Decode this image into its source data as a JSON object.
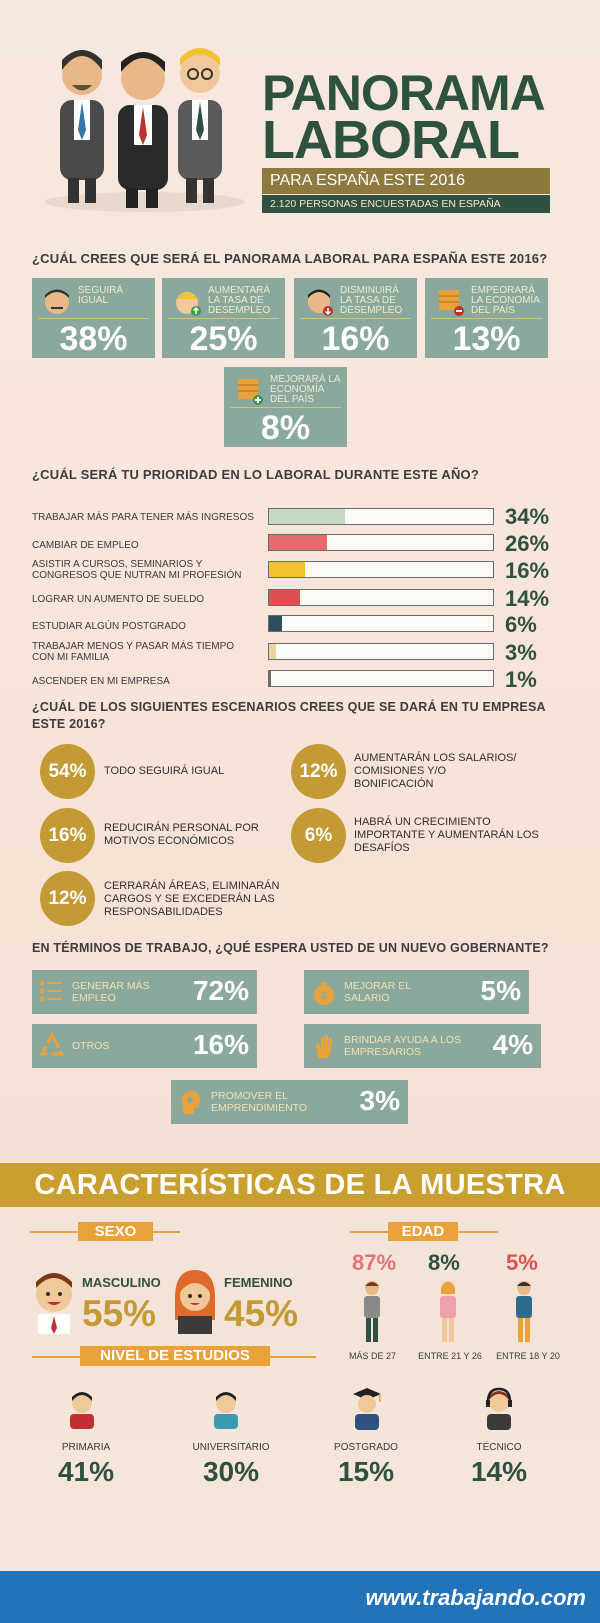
{
  "header": {
    "title_line1": "PANORAMA",
    "title_line2": "LABORAL",
    "subtitle": "PARA ESPAÑA ESTE 2016",
    "sample": "2.120  PERSONAS ENCUESTADAS EN ESPAÑA"
  },
  "q1": {
    "question": "¿CUÁL CREES QUE SERÁ EL PANORAMA LABORAL PARA ESPAÑA ESTE 2016?",
    "options": [
      {
        "label": "SEGUIRÁ IGUAL",
        "pct": "38%",
        "icon": "neutral-face-icon"
      },
      {
        "label": "AUMENTARÁ LA TASA DE DESEMPLEO",
        "pct": "25%",
        "icon": "worker-up-icon"
      },
      {
        "label": "DISMINUIRÁ LA TASA DE DESEMPLEO",
        "pct": "16%",
        "icon": "worker-down-icon"
      },
      {
        "label": "EMPEORARÁ LA ECONOMÍA DEL PAÍS",
        "pct": "13%",
        "icon": "coins-minus-icon"
      },
      {
        "label": "MEJORARÁ LA ECONOMÍA DEL PAÍS",
        "pct": "8%",
        "icon": "coins-plus-icon"
      }
    ]
  },
  "q2": {
    "question": "¿CUÁL SERÁ TU PRIORIDAD EN LO LABORAL DURANTE ESTE AÑO?",
    "items": [
      {
        "label": "TRABAJAR MÁS PARA TENER MÁS INGRESOS",
        "pct": "34%",
        "value": 34,
        "color": "#c5d8c6"
      },
      {
        "label": "CAMBIAR DE EMPLEO",
        "pct": "26%",
        "value": 26,
        "color": "#e76b6b"
      },
      {
        "label": "ASISTIR A CURSOS, SEMINARIOS Y CONGRESOS QUE NUTRAN MI PROFESIÓN",
        "pct": "16%",
        "value": 16,
        "color": "#f1c22e"
      },
      {
        "label": "LOGRAR UN AUMENTO DE SUELDO",
        "pct": "14%",
        "value": 14,
        "color": "#de5050"
      },
      {
        "label": "ESTUDIAR ALGÚN POSTGRADO",
        "pct": "6%",
        "value": 6,
        "color": "#2e4e5e"
      },
      {
        "label": "TRABAJAR MENOS Y PASAR MÁS TIEMPO CON MI FAMILIA",
        "pct": "3%",
        "value": 3,
        "color": "#e8d69a"
      },
      {
        "label": "ASCENDER EN MI EMPRESA",
        "pct": "1%",
        "value": 1,
        "color": "#6b6b6b"
      }
    ]
  },
  "q3": {
    "question_line1": "¿CUÁL DE LOS SIGUIENTES ESCENARIOS CREES QUE SE DARÁ EN TU EMPRESA",
    "question_line2": "ESTE 2016?",
    "items": [
      {
        "pct": "54%",
        "text": "TODO SEGUIRÁ IGUAL"
      },
      {
        "pct": "16%",
        "text": "REDUCIRÁN PERSONAL POR MOTIVOS ECONÓMICOS"
      },
      {
        "pct": "12%",
        "text": "CERRARÁN ÁREAS, ELIMINARÁN CARGOS Y SE EXCEDERÁN LAS RESPONSABILIDADES"
      },
      {
        "pct": "12%",
        "text": "AUMENTARÁN LOS SALARIOS/ COMISIONES Y/O BONIFICACIÓN"
      },
      {
        "pct": "6%",
        "text": "HABRÁ UN CRECIMIENTO IMPORTANTE Y AUMENTARÁN LOS DESAFÍOS"
      }
    ]
  },
  "q4": {
    "question": "EN TÉRMINOS DE TRABAJO, ¿QUÉ ESPERA USTED DE UN NUEVO GOBERNANTE?",
    "items": [
      {
        "label": "GENERAR MÁS EMPLEO",
        "pct": "72%",
        "icon": "list-icon"
      },
      {
        "label": "OTROS",
        "pct": "16%",
        "icon": "recycle-icon"
      },
      {
        "label": "MEJORAR EL SALARIO",
        "pct": "5%",
        "icon": "money-bag-icon"
      },
      {
        "label": "BRINDAR AYUDA A LOS EMPRESARIOS",
        "pct": "4%",
        "icon": "hand-icon"
      },
      {
        "label": "PROMOVER EL EMPRENDIMIENTO",
        "pct": "3%",
        "icon": "head-gears-icon"
      }
    ]
  },
  "sample_section": {
    "title": "CARACTERÍSTICAS DE LA MUESTRA",
    "sexo": {
      "heading": "SEXO",
      "male_label": "MASCULINO",
      "male_pct": "55%",
      "female_label": "FEMENINO",
      "female_pct": "45%"
    },
    "edad": {
      "heading": "EDAD",
      "groups": [
        {
          "pct": "87%",
          "label": "MÁS DE 27",
          "color": "#e2747a"
        },
        {
          "pct": "8%",
          "label": "ENTRE 21 Y 26",
          "color": "#2f5140"
        },
        {
          "pct": "5%",
          "label": "ENTRE 18 Y 20",
          "color": "#de5050"
        }
      ]
    },
    "estudios": {
      "heading": "NIVEL DE ESTUDIOS",
      "groups": [
        {
          "label": "PRIMARIA",
          "pct": "41%"
        },
        {
          "label": "UNIVERSITARIO",
          "pct": "30%"
        },
        {
          "label": "POSTGRADO",
          "pct": "15%"
        },
        {
          "label": "TÉCNICO",
          "pct": "14%"
        }
      ]
    }
  },
  "footer": {
    "brand": "www.trabajando.com"
  }
}
